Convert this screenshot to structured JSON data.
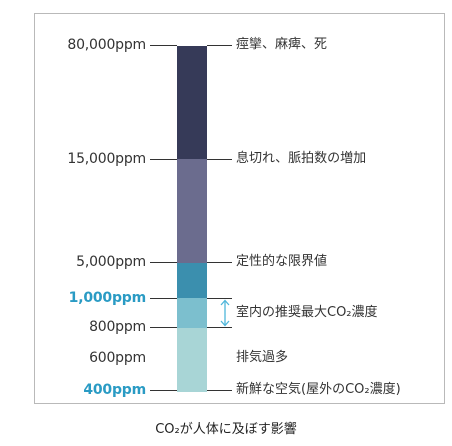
{
  "levels": [
    {
      "label": "80,000ppm",
      "effect": "痙攣、麻痺、死",
      "highlight": false
    },
    {
      "label": "15,000ppm",
      "effect": "息切れ、脈拍数の増加",
      "highlight": false
    },
    {
      "label": "5,000ppm",
      "effect": "定性的な限界値",
      "highlight": false
    },
    {
      "label": "1,000ppm",
      "effect": "",
      "highlight": true
    },
    {
      "label": "800ppm",
      "effect": "",
      "highlight": false
    },
    {
      "label": "600ppm",
      "effect": "排気過多",
      "highlight": false
    },
    {
      "label": "400ppm",
      "effect": "新鮮な空気(屋外のCO₂濃度)",
      "highlight": true
    }
  ],
  "range_note": "室内の推奨最大CO₂濃度",
  "caption": "CO₂が人体に及ぼす影響",
  "colors": {
    "bar_top": "#363a58",
    "bar_mid": "#6b6c8e",
    "bar_high": "#3b8fae",
    "bar_light": "#7cbfce",
    "bar_fresh": "#a8d5d6",
    "highlight_text": "#2a9bc4",
    "arrow": "#4fb6da"
  }
}
